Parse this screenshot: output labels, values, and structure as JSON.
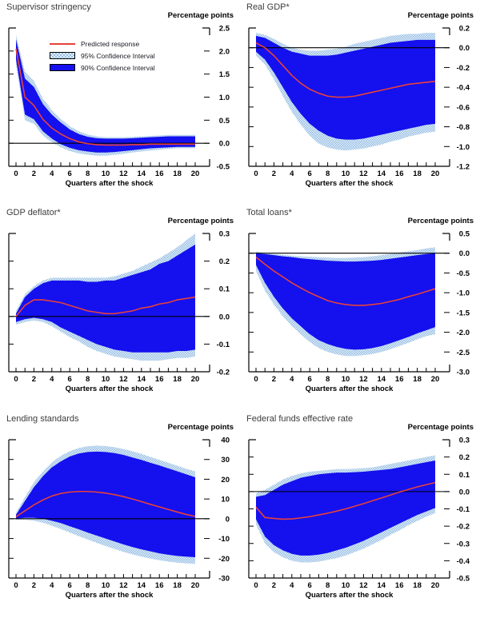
{
  "chart_data": {
    "type": "line-with-confidence-bands",
    "x_label": "Quarters after the shock",
    "y_unit_label": "Percentage points",
    "x_values": [
      0,
      1,
      2,
      3,
      4,
      5,
      6,
      7,
      8,
      9,
      10,
      11,
      12,
      13,
      14,
      15,
      16,
      17,
      18,
      19,
      20
    ],
    "xtick_labels": [
      "0",
      "2",
      "4",
      "6",
      "8",
      "10",
      "12",
      "14",
      "16",
      "18",
      "20"
    ],
    "legend": [
      {
        "swatch": "predicted-line",
        "label": "Predicted response"
      },
      {
        "swatch": "ci95",
        "label": "95% Confidence Interval"
      },
      {
        "swatch": "ci90",
        "label": "90% Confidence Interval"
      }
    ],
    "colors": {
      "predicted": "#e8413a",
      "ci90": "#1410ee",
      "ci95_base": "#e7f0f9",
      "ci95_dot": "#93bde4",
      "axis": "#000000",
      "title_text": "#3c3c3c"
    },
    "panels": [
      {
        "title": "Supervisor stringency",
        "has_legend": true,
        "ylim": [
          -0.5,
          2.5
        ],
        "ytick_values": [
          2.5,
          2.0,
          1.5,
          1.0,
          0.5,
          0.0,
          -0.5
        ],
        "ytick_labels": [
          "2.5",
          "2.0",
          "1.5",
          "1.0",
          "0.5",
          "0.0",
          "-0.5"
        ],
        "predicted": [
          2.05,
          1.0,
          0.82,
          0.52,
          0.33,
          0.2,
          0.1,
          0.03,
          -0.01,
          -0.03,
          -0.04,
          -0.04,
          -0.04,
          -0.03,
          -0.03,
          -0.02,
          -0.02,
          -0.02,
          -0.02,
          -0.02,
          -0.02
        ],
        "ci90_upper": [
          2.25,
          1.4,
          1.22,
          0.85,
          0.62,
          0.45,
          0.3,
          0.2,
          0.14,
          0.11,
          0.1,
          0.1,
          0.1,
          0.11,
          0.12,
          0.13,
          0.14,
          0.15,
          0.15,
          0.15,
          0.15
        ],
        "ci90_lower": [
          1.82,
          0.62,
          0.52,
          0.26,
          0.1,
          -0.02,
          -0.1,
          -0.15,
          -0.18,
          -0.2,
          -0.2,
          -0.19,
          -0.17,
          -0.15,
          -0.13,
          -0.11,
          -0.1,
          -0.09,
          -0.08,
          -0.08,
          -0.08
        ],
        "ci95_upper": [
          2.35,
          1.55,
          1.35,
          0.97,
          0.72,
          0.53,
          0.37,
          0.26,
          0.19,
          0.15,
          0.13,
          0.13,
          0.13,
          0.14,
          0.15,
          0.16,
          0.17,
          0.18,
          0.18,
          0.18,
          0.18
        ],
        "ci95_lower": [
          1.7,
          0.5,
          0.42,
          0.17,
          0.02,
          -0.09,
          -0.17,
          -0.22,
          -0.25,
          -0.27,
          -0.27,
          -0.25,
          -0.23,
          -0.2,
          -0.18,
          -0.16,
          -0.14,
          -0.12,
          -0.11,
          -0.11,
          -0.11
        ]
      },
      {
        "title": "Real GDP*",
        "has_legend": false,
        "ylim": [
          -1.2,
          0.2
        ],
        "ytick_values": [
          0.2,
          0.0,
          -0.2,
          -0.4,
          -0.6,
          -0.8,
          -1.0,
          -1.2
        ],
        "ytick_labels": [
          "0.2",
          "0.0",
          "-0.2",
          "-0.4",
          "-0.6",
          "-0.8",
          "-1.0",
          "-1.2"
        ],
        "predicted": [
          0.05,
          0.0,
          -0.08,
          -0.18,
          -0.28,
          -0.36,
          -0.42,
          -0.46,
          -0.49,
          -0.5,
          -0.5,
          -0.49,
          -0.47,
          -0.45,
          -0.43,
          -0.41,
          -0.39,
          -0.37,
          -0.36,
          -0.35,
          -0.34
        ],
        "ci90_upper": [
          0.12,
          0.1,
          0.05,
          0.0,
          -0.04,
          -0.06,
          -0.08,
          -0.08,
          -0.08,
          -0.07,
          -0.05,
          -0.03,
          -0.01,
          0.01,
          0.03,
          0.05,
          0.06,
          0.07,
          0.08,
          0.08,
          0.08
        ],
        "ci90_lower": [
          -0.04,
          -0.12,
          -0.25,
          -0.4,
          -0.55,
          -0.67,
          -0.77,
          -0.84,
          -0.89,
          -0.92,
          -0.93,
          -0.93,
          -0.92,
          -0.9,
          -0.88,
          -0.86,
          -0.84,
          -0.82,
          -0.8,
          -0.78,
          -0.77
        ],
        "ci95_upper": [
          0.15,
          0.13,
          0.09,
          0.04,
          0.0,
          -0.02,
          -0.03,
          -0.03,
          -0.02,
          -0.01,
          0.01,
          0.04,
          0.06,
          0.08,
          0.1,
          0.12,
          0.13,
          0.14,
          0.14,
          0.15,
          0.15
        ],
        "ci95_lower": [
          -0.08,
          -0.17,
          -0.32,
          -0.49,
          -0.65,
          -0.78,
          -0.89,
          -0.97,
          -1.01,
          -1.03,
          -1.04,
          -1.03,
          -1.02,
          -1.0,
          -0.98,
          -0.95,
          -0.93,
          -0.9,
          -0.88,
          -0.86,
          -0.85
        ]
      },
      {
        "title": "GDP deflator*",
        "has_legend": false,
        "ylim": [
          -0.2,
          0.3
        ],
        "ytick_values": [
          0.3,
          0.2,
          0.1,
          0.0,
          -0.1,
          -0.2
        ],
        "ytick_labels": [
          "0.3",
          "0.2",
          "0.1",
          "0.0",
          "-0.1",
          "-0.2"
        ],
        "predicted": [
          0.0,
          0.04,
          0.06,
          0.06,
          0.055,
          0.05,
          0.04,
          0.03,
          0.02,
          0.015,
          0.01,
          0.01,
          0.015,
          0.02,
          0.03,
          0.035,
          0.045,
          0.05,
          0.06,
          0.065,
          0.07
        ],
        "ci90_upper": [
          0.01,
          0.07,
          0.1,
          0.12,
          0.13,
          0.13,
          0.13,
          0.13,
          0.125,
          0.125,
          0.13,
          0.13,
          0.14,
          0.15,
          0.16,
          0.17,
          0.19,
          0.2,
          0.22,
          0.24,
          0.26
        ],
        "ci90_lower": [
          -0.02,
          -0.01,
          -0.005,
          -0.01,
          -0.02,
          -0.04,
          -0.055,
          -0.07,
          -0.085,
          -0.1,
          -0.11,
          -0.12,
          -0.125,
          -0.13,
          -0.13,
          -0.13,
          -0.13,
          -0.13,
          -0.125,
          -0.125,
          -0.12
        ],
        "ci95_upper": [
          0.02,
          0.08,
          0.11,
          0.13,
          0.14,
          0.14,
          0.14,
          0.14,
          0.14,
          0.14,
          0.14,
          0.145,
          0.155,
          0.165,
          0.18,
          0.195,
          0.21,
          0.23,
          0.25,
          0.275,
          0.3
        ],
        "ci95_lower": [
          -0.03,
          -0.02,
          -0.015,
          -0.02,
          -0.035,
          -0.055,
          -0.075,
          -0.09,
          -0.11,
          -0.125,
          -0.135,
          -0.145,
          -0.15,
          -0.155,
          -0.16,
          -0.16,
          -0.16,
          -0.155,
          -0.15,
          -0.15,
          -0.145
        ]
      },
      {
        "title": "Total loans*",
        "has_legend": false,
        "ylim": [
          -3.0,
          0.5
        ],
        "ytick_values": [
          0.5,
          0.0,
          -0.5,
          -1.0,
          -1.5,
          -2.0,
          -2.5,
          -3.0
        ],
        "ytick_labels": [
          "0.5",
          "0.0",
          "-0.5",
          "-1.0",
          "-1.5",
          "-2.0",
          "-2.5",
          "-3.0"
        ],
        "predicted": [
          -0.1,
          -0.28,
          -0.45,
          -0.6,
          -0.75,
          -0.88,
          -1.0,
          -1.1,
          -1.2,
          -1.26,
          -1.3,
          -1.32,
          -1.32,
          -1.3,
          -1.27,
          -1.22,
          -1.17,
          -1.1,
          -1.04,
          -0.97,
          -0.9
        ],
        "ci90_upper": [
          0.0,
          -0.02,
          -0.05,
          -0.08,
          -0.1,
          -0.13,
          -0.15,
          -0.17,
          -0.19,
          -0.2,
          -0.21,
          -0.21,
          -0.2,
          -0.19,
          -0.17,
          -0.14,
          -0.11,
          -0.08,
          -0.05,
          -0.02,
          0.0
        ],
        "ci90_lower": [
          -0.3,
          -0.75,
          -1.1,
          -1.4,
          -1.65,
          -1.85,
          -2.05,
          -2.2,
          -2.3,
          -2.37,
          -2.42,
          -2.44,
          -2.43,
          -2.4,
          -2.35,
          -2.28,
          -2.2,
          -2.12,
          -2.03,
          -1.95,
          -1.87
        ],
        "ci95_upper": [
          0.05,
          0.0,
          -0.02,
          -0.04,
          -0.06,
          -0.08,
          -0.09,
          -0.1,
          -0.11,
          -0.12,
          -0.12,
          -0.11,
          -0.1,
          -0.08,
          -0.05,
          -0.02,
          0.02,
          0.05,
          0.08,
          0.12,
          0.15
        ],
        "ci95_lower": [
          -0.45,
          -0.95,
          -1.3,
          -1.6,
          -1.85,
          -2.05,
          -2.25,
          -2.4,
          -2.5,
          -2.56,
          -2.6,
          -2.6,
          -2.58,
          -2.55,
          -2.5,
          -2.43,
          -2.35,
          -2.27,
          -2.18,
          -2.1,
          -2.05
        ]
      },
      {
        "title": "Lending standards",
        "has_legend": false,
        "ylim": [
          -30,
          40
        ],
        "ytick_values": [
          40,
          30,
          20,
          10,
          0,
          -10,
          -20,
          -30
        ],
        "ytick_labels": [
          "40",
          "30",
          "20",
          "10",
          "0",
          "-10",
          "-20",
          "-30"
        ],
        "predicted": [
          1,
          4,
          7,
          9.5,
          11.5,
          12.8,
          13.5,
          13.8,
          13.8,
          13.5,
          13,
          12.2,
          11.2,
          10,
          8.7,
          7.3,
          6,
          4.7,
          3.4,
          2.2,
          1.2
        ],
        "ci90_upper": [
          2,
          9,
          16,
          21.5,
          26,
          29,
          31.5,
          33,
          33.8,
          34,
          33.8,
          33.2,
          32.3,
          31,
          29.8,
          28.3,
          27,
          25.5,
          24,
          22.5,
          21
        ],
        "ci90_lower": [
          0,
          0.5,
          0.5,
          0,
          -1,
          -2.2,
          -3.8,
          -5.3,
          -7,
          -8.5,
          -10,
          -11.5,
          -13,
          -14.3,
          -15.5,
          -16.5,
          -17.5,
          -18.2,
          -18.8,
          -19.2,
          -19.5
        ],
        "ci95_upper": [
          3,
          11,
          18.5,
          24,
          28.5,
          31.8,
          34.2,
          35.8,
          36.7,
          37,
          36.8,
          36.2,
          35.3,
          34.2,
          32.8,
          31.3,
          29.8,
          28.3,
          26.8,
          25.3,
          24
        ],
        "ci95_lower": [
          -0.5,
          -0.5,
          -1,
          -2,
          -3.5,
          -5.2,
          -7,
          -8.8,
          -10.5,
          -12.2,
          -13.8,
          -15.3,
          -16.8,
          -18,
          -19.2,
          -20.2,
          -21,
          -21.7,
          -22.2,
          -22.6,
          -22.8
        ]
      },
      {
        "title": "Federal funds effective rate",
        "has_legend": false,
        "ylim": [
          -0.5,
          0.3
        ],
        "ytick_values": [
          0.3,
          0.2,
          0.1,
          0.0,
          -0.1,
          -0.2,
          -0.3,
          -0.4,
          -0.5
        ],
        "ytick_labels": [
          "0.3",
          "0.2",
          "0.1",
          "0.0",
          "-0.1",
          "-0.2",
          "-0.3",
          "-0.4",
          "-0.5"
        ],
        "predicted": [
          -0.09,
          -0.15,
          -0.155,
          -0.16,
          -0.158,
          -0.152,
          -0.145,
          -0.135,
          -0.125,
          -0.113,
          -0.1,
          -0.085,
          -0.07,
          -0.053,
          -0.037,
          -0.02,
          -0.003,
          0.012,
          0.027,
          0.04,
          0.052
        ],
        "ci90_upper": [
          -0.03,
          -0.02,
          0.01,
          0.04,
          0.06,
          0.08,
          0.09,
          0.1,
          0.105,
          0.11,
          0.11,
          0.112,
          0.115,
          0.12,
          0.125,
          0.13,
          0.14,
          0.15,
          0.16,
          0.17,
          0.18
        ],
        "ci90_lower": [
          -0.16,
          -0.26,
          -0.31,
          -0.34,
          -0.36,
          -0.37,
          -0.37,
          -0.365,
          -0.355,
          -0.34,
          -0.325,
          -0.305,
          -0.285,
          -0.26,
          -0.235,
          -0.21,
          -0.185,
          -0.16,
          -0.135,
          -0.115,
          -0.095
        ],
        "ci95_upper": [
          -0.01,
          0.01,
          0.04,
          0.07,
          0.09,
          0.105,
          0.115,
          0.12,
          0.125,
          0.13,
          0.13,
          0.132,
          0.135,
          0.14,
          0.15,
          0.16,
          0.17,
          0.18,
          0.19,
          0.2,
          0.21
        ],
        "ci95_lower": [
          -0.19,
          -0.3,
          -0.35,
          -0.38,
          -0.4,
          -0.41,
          -0.41,
          -0.405,
          -0.395,
          -0.385,
          -0.37,
          -0.35,
          -0.33,
          -0.305,
          -0.28,
          -0.25,
          -0.225,
          -0.195,
          -0.17,
          -0.145,
          -0.125
        ]
      }
    ]
  }
}
